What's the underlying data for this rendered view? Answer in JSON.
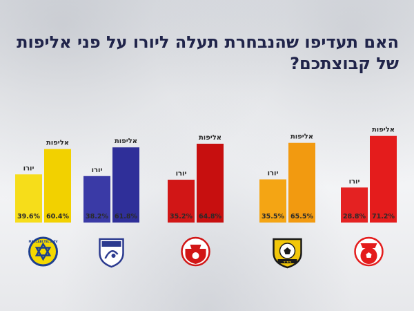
{
  "title": "האם תעדיפו שהנבחרת תעלה ליורו על פני אליפות של קבוצתכם?",
  "chart_data": {
    "type": "bar",
    "title": "האם תעדיפו שהנבחרת תעלה ליורו על פני אליפות של קבוצתכם?",
    "ylim": [
      0,
      100
    ],
    "grid": false,
    "series_labels": [
      "יורו",
      "אליפות"
    ],
    "groups": [
      {
        "values": [
          39.6,
          60.4
        ],
        "value_labels": [
          "39.6%",
          "60.4%"
        ],
        "colors": [
          "#f6dd1a",
          "#f2d100"
        ],
        "logo": "maccabi-tel-aviv-logo",
        "logo_texts": [
          "MACCABI TEL AVIV"
        ]
      },
      {
        "values": [
          38.2,
          61.8
        ],
        "value_labels": [
          "38.2%",
          "61.8%"
        ],
        "colors": [
          "#3a3aa6",
          "#2f2f99"
        ],
        "logo": "hapoel-kfar-saba-logo",
        "logo_texts": []
      },
      {
        "values": [
          35.2,
          64.8
        ],
        "value_labels": [
          "35.2%",
          "64.8%"
        ],
        "colors": [
          "#d11616",
          "#c70f0f"
        ],
        "logo": "hapoel-tel-aviv-logo",
        "logo_texts": []
      },
      {
        "values": [
          35.5,
          65.5
        ],
        "value_labels": [
          "35.5%",
          "65.5%"
        ],
        "colors": [
          "#f4a514",
          "#f29a10"
        ],
        "logo": "beitar-jerusalem-logo",
        "logo_texts": [
          "בית״ר"
        ]
      },
      {
        "values": [
          28.8,
          71.2
        ],
        "value_labels": [
          "28.8%",
          "71.2%"
        ],
        "colors": [
          "#e42222",
          "#e41c1c"
        ],
        "logo": "hapoel-beer-sheva-logo",
        "logo_texts": []
      }
    ]
  }
}
